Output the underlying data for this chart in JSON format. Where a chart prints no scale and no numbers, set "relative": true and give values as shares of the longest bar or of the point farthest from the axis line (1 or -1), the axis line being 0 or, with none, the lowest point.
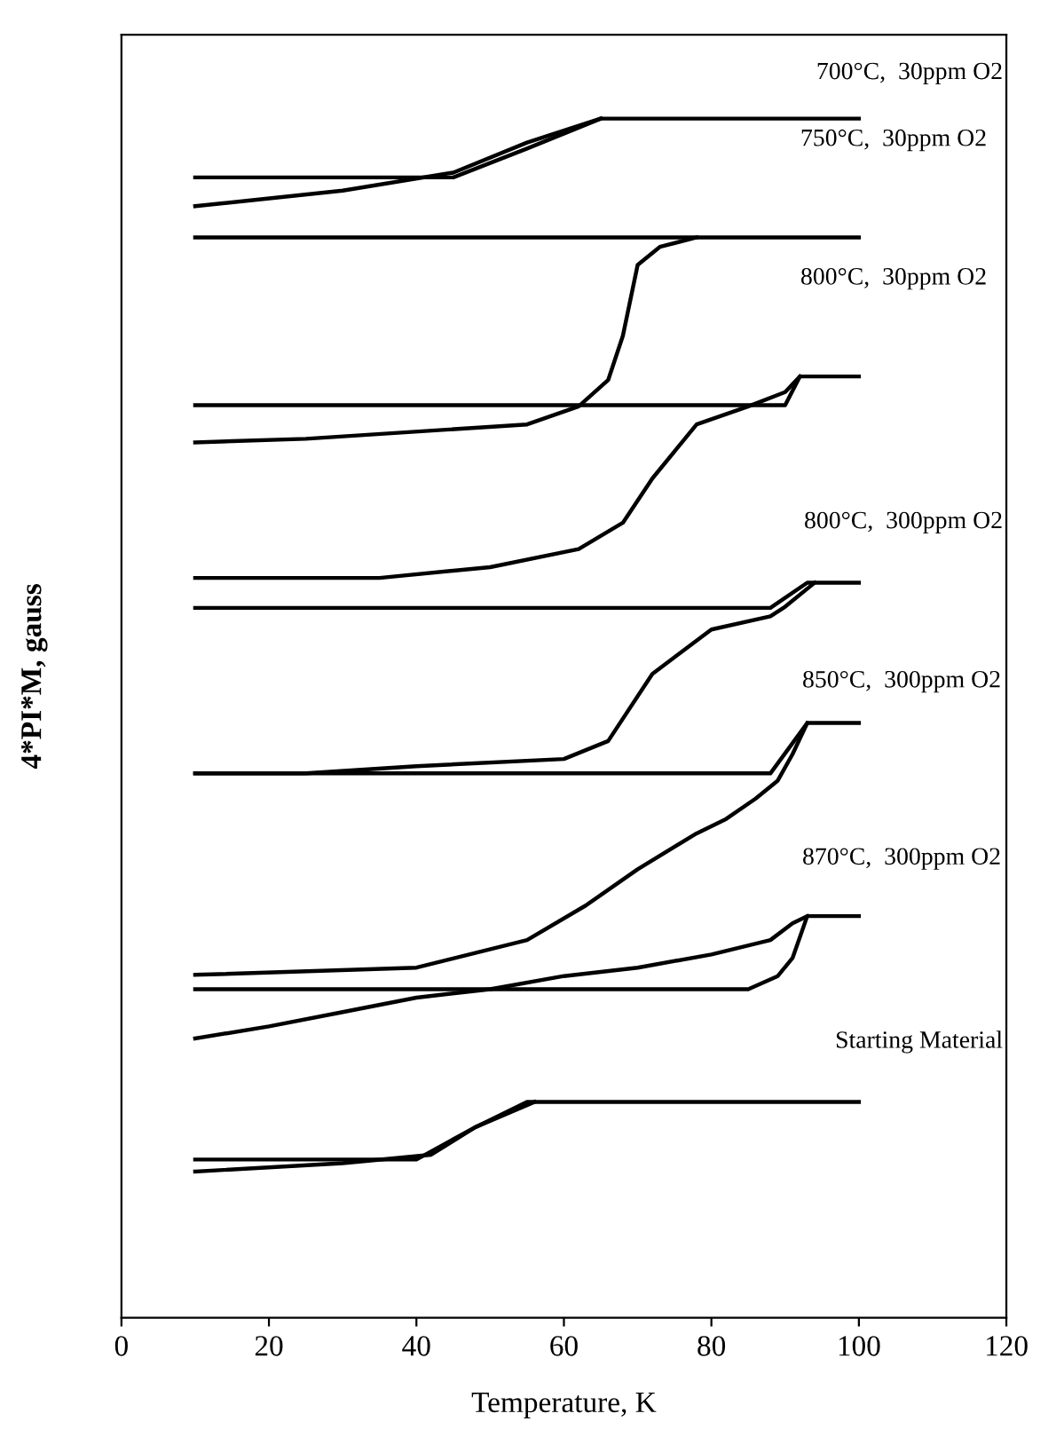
{
  "chart_data": {
    "type": "line",
    "relative": true,
    "xlabel": "Temperature, K",
    "ylabel": "4*PI*M, gauss",
    "xlim": [
      0,
      120
    ],
    "xticks": [
      0,
      20,
      40,
      60,
      80,
      100,
      120
    ],
    "grid": false,
    "marker": "none",
    "line_style": "solid",
    "series": [
      {
        "color": "#000000",
        "x": [
          10,
          45,
          55,
          65,
          100
        ],
        "values": [
          0.951,
          0.951,
          0.975,
          1.0,
          1.0
        ]
      },
      {
        "color": "#000000",
        "x": [
          10,
          30,
          45,
          55,
          65
        ],
        "values": [
          0.927,
          0.94,
          0.955,
          0.98,
          1.0
        ]
      },
      {
        "color": "#000000",
        "x": [
          10,
          100
        ],
        "values": [
          0.901,
          0.901
        ]
      },
      {
        "color": "#000000",
        "x": [
          10,
          25,
          55,
          62,
          66,
          68,
          70,
          73,
          78
        ],
        "values": [
          0.73,
          0.733,
          0.745,
          0.76,
          0.782,
          0.819,
          0.878,
          0.893,
          0.901
        ]
      },
      {
        "color": "#000000",
        "x": [
          10,
          90,
          92,
          100
        ],
        "values": [
          0.761,
          0.761,
          0.785,
          0.785
        ]
      },
      {
        "color": "#000000",
        "x": [
          10,
          35,
          50,
          62,
          68,
          72,
          78,
          85,
          90,
          92
        ],
        "values": [
          0.617,
          0.617,
          0.626,
          0.641,
          0.663,
          0.7,
          0.745,
          0.76,
          0.772,
          0.785
        ]
      },
      {
        "color": "#000000",
        "x": [
          10,
          88,
          93,
          100
        ],
        "values": [
          0.592,
          0.592,
          0.613,
          0.613
        ]
      },
      {
        "color": "#000000",
        "x": [
          10,
          25,
          40,
          60,
          66,
          72,
          80,
          88,
          90,
          94
        ],
        "values": [
          0.454,
          0.454,
          0.46,
          0.466,
          0.481,
          0.537,
          0.574,
          0.585,
          0.593,
          0.613
        ]
      },
      {
        "color": "#000000",
        "x": [
          10,
          88,
          93,
          100
        ],
        "values": [
          0.454,
          0.454,
          0.496,
          0.496
        ]
      },
      {
        "color": "#000000",
        "x": [
          10,
          40,
          55,
          63,
          70,
          78,
          82,
          86,
          89,
          91,
          93
        ],
        "values": [
          0.286,
          0.292,
          0.315,
          0.344,
          0.374,
          0.404,
          0.416,
          0.433,
          0.448,
          0.47,
          0.496
        ]
      },
      {
        "color": "#000000",
        "x": [
          10,
          85,
          89,
          91,
          93,
          100
        ],
        "values": [
          0.274,
          0.274,
          0.285,
          0.3,
          0.335,
          0.335
        ]
      },
      {
        "color": "#000000",
        "x": [
          10,
          20,
          30,
          40,
          50,
          60,
          70,
          80,
          88,
          91,
          93
        ],
        "values": [
          0.233,
          0.243,
          0.255,
          0.267,
          0.274,
          0.285,
          0.292,
          0.303,
          0.315,
          0.329,
          0.335
        ]
      },
      {
        "color": "#000000",
        "x": [
          10,
          40,
          48,
          55,
          100
        ],
        "values": [
          0.132,
          0.132,
          0.159,
          0.18,
          0.18
        ]
      },
      {
        "color": "#000000",
        "x": [
          10,
          30,
          42,
          48,
          56
        ],
        "values": [
          0.122,
          0.129,
          0.136,
          0.159,
          0.18
        ]
      }
    ],
    "annotations": [
      "700°C,  30ppm O2",
      "750°C,  30ppm O2",
      "800°C,  30ppm O2",
      "800°C,  300ppm O2",
      "850°C,  300ppm O2",
      "870°C,  300ppm O2",
      "Starting Material"
    ]
  }
}
